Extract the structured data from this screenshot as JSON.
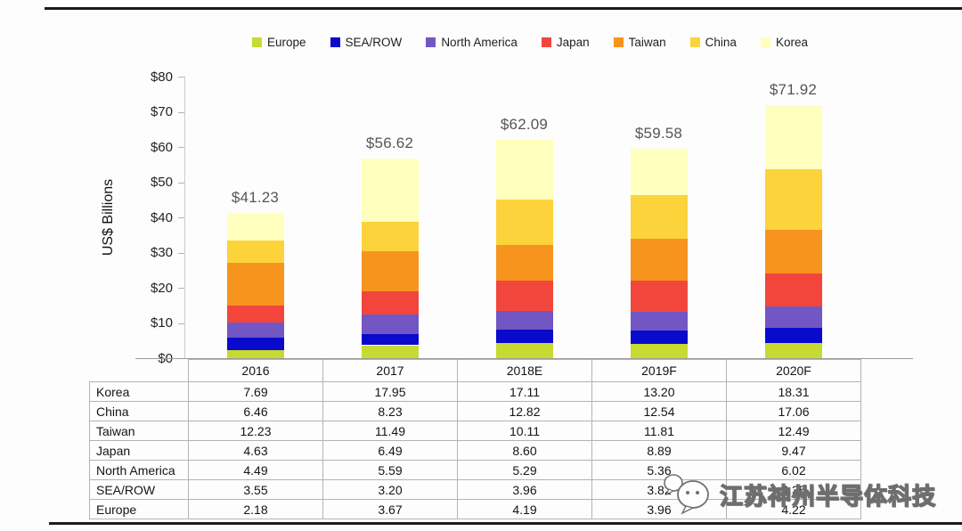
{
  "watermark": {
    "text": "江苏神州半导体科技",
    "logo": "wechat-bubbles-logo"
  },
  "chart_data": {
    "type": "bar",
    "stacked": true,
    "title": "",
    "xlabel": "",
    "ylabel": "US$ Billions",
    "ylim": [
      0,
      80
    ],
    "ytick_step": 10,
    "ytick_labels": [
      "$0",
      "$10",
      "$20",
      "$30",
      "$40",
      "$50",
      "$60",
      "$70",
      "$80"
    ],
    "grid": false,
    "legend_position": "top-center",
    "categories": [
      "2016",
      "2017",
      "2018E",
      "2019F",
      "2020F"
    ],
    "totals_labels": [
      "$41.23",
      "$56.62",
      "$62.09",
      "$59.58",
      "$71.92"
    ],
    "totals": [
      41.23,
      56.62,
      62.09,
      59.58,
      71.92
    ],
    "series": [
      {
        "name": "Europe",
        "color": "#c6da31",
        "values": [
          2.18,
          3.67,
          4.19,
          3.96,
          4.22
        ]
      },
      {
        "name": "SEA/ROW",
        "color": "#0a0acc",
        "values": [
          3.55,
          3.2,
          3.96,
          3.82,
          4.35
        ]
      },
      {
        "name": "North America",
        "color": "#7257c4",
        "values": [
          4.49,
          5.59,
          5.29,
          5.36,
          6.02
        ]
      },
      {
        "name": "Japan",
        "color": "#f2463c",
        "values": [
          4.63,
          6.49,
          8.6,
          8.89,
          9.47
        ]
      },
      {
        "name": "Taiwan",
        "color": "#f7941e",
        "values": [
          12.23,
          11.49,
          10.11,
          11.81,
          12.49
        ]
      },
      {
        "name": "China",
        "color": "#fcd33b",
        "values": [
          6.46,
          8.23,
          12.82,
          12.54,
          17.06
        ]
      },
      {
        "name": "Korea",
        "color": "#ffffbe",
        "values": [
          7.69,
          17.95,
          17.11,
          13.2,
          18.31
        ]
      }
    ],
    "legend_order": [
      "Europe",
      "SEA/ROW",
      "North America",
      "Japan",
      "Taiwan",
      "China",
      "Korea"
    ],
    "table_row_order": [
      "Korea",
      "China",
      "Taiwan",
      "Japan",
      "North America",
      "SEA/ROW",
      "Europe"
    ]
  }
}
